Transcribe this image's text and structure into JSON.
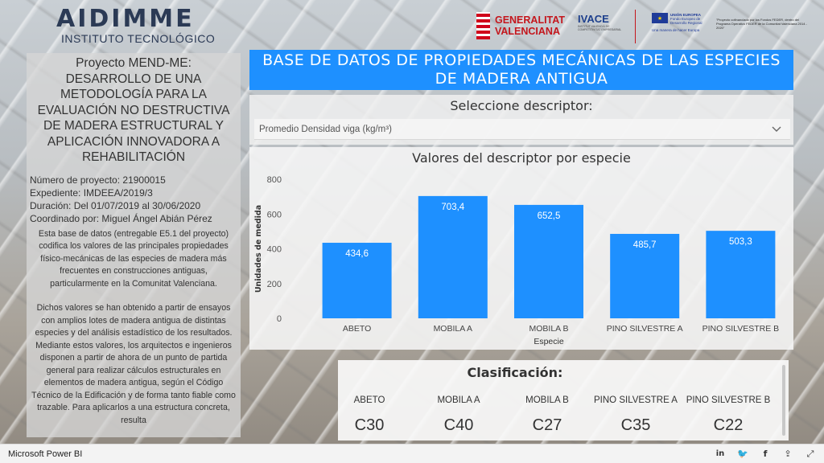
{
  "header": {
    "logo_main": "AIDIMME",
    "logo_sub": "INSTITUTO TECNOLÓGICO",
    "gv_line1": "GENERALITAT",
    "gv_line2": "VALENCIANA",
    "ivace": "IVACE",
    "ivace_sub": "INSTITUT VALENCIÀ DE COMPETITIVITAT EMPRESARIAL",
    "eu_line1": "UNIÓN EUROPEA",
    "eu_line2": "Fondo Europeo de Desarrollo Regional",
    "eu_line3": "Una manera de hacer Europa",
    "feder_note": "\"Proyecto cofinanciado por los Fondos FEDER, dentro del Programa Operativo FEDER de la Comunitat Valenciana 2014 - 2020\""
  },
  "project": {
    "title": "Proyecto MEND-ME: DESARROLLO DE UNA METODOLOGÍA PARA LA EVALUACIÓN NO DESTRUCTIVA DE MADERA ESTRUCTURAL Y APLICACIÓN INNOVADORA A REHABILITACIÓN",
    "number": "Número de proyecto: 21900015",
    "file": "Expediente: IMDEEA/2019/3",
    "duration": "Duración: Del 01/07/2019 al 30/06/2020",
    "coordinator": "Coordinado por: Miguel Ángel Abián Pérez",
    "desc_p1": "Esta base de datos (entregable E5.1 del proyecto) codifica los valores de las principales propiedades físico-mecánicas de las especies de madera más frecuentes en construcciones antiguas, particularmente en la Comunitat Valenciana.",
    "desc_p2": "Dichos valores se han obtenido a partir de ensayos con amplios lotes de madera antigua de distintas especies y del análisis estadístico de los resultados. Mediante estos valores, los arquitectos e ingenieros disponen a partir de ahora de un punto de partida general para realizar cálculos estructurales en elementos de madera antigua, según el Código Técnico de la Edificación y de forma tanto fiable como trazable. Para aplicarlos a una estructura concreta,  resulta"
  },
  "banner": {
    "title": "BASE DE DATOS DE PROPIEDADES MECÁNICAS DE LAS ESPECIES DE MADERA ANTIGUA"
  },
  "slicer": {
    "title": "Seleccione descriptor:",
    "selected": "Promedio Densidad viga (kg/m³)",
    "icon": "chevron-down-icon"
  },
  "chart_data": {
    "type": "bar",
    "title": "Valores del descriptor por especie",
    "xlabel": "Especie",
    "ylabel": "Unidades de medida",
    "categories": [
      "ABETO",
      "MOBILA A",
      "MOBILA B",
      "PINO SILVESTRE A",
      "PINO SILVESTRE B"
    ],
    "values": [
      434.6,
      703.4,
      652.5,
      485.7,
      503.3
    ],
    "data_labels": [
      "434,6",
      "703,4",
      "652,5",
      "485,7",
      "503,3"
    ],
    "yticks": [
      "0",
      "200",
      "400",
      "600",
      "800"
    ],
    "ylim": [
      0,
      800
    ],
    "grid": false,
    "bar_color": "#1e90ff"
  },
  "classification": {
    "title": "Clasificación:",
    "items": [
      {
        "species": "ABETO",
        "grade": "C30"
      },
      {
        "species": "MOBILA A",
        "grade": "C40"
      },
      {
        "species": "MOBILA B",
        "grade": "C27"
      },
      {
        "species": "PINO SILVESTRE A",
        "grade": "C35"
      },
      {
        "species": "PINO SILVESTRE B",
        "grade": "C22"
      }
    ]
  },
  "statusbar": {
    "app_name": "Microsoft Power BI",
    "icons": [
      "linkedin-icon",
      "twitter-icon",
      "facebook-icon",
      "share-icon",
      "fullscreen-icon"
    ],
    "glyphs": [
      "in",
      "🐦",
      "f",
      "⇪",
      "⤢"
    ]
  },
  "colors": {
    "accent": "#1e90ff",
    "aidimme_navy": "#2b3a55",
    "gv_red": "#c4161c"
  }
}
